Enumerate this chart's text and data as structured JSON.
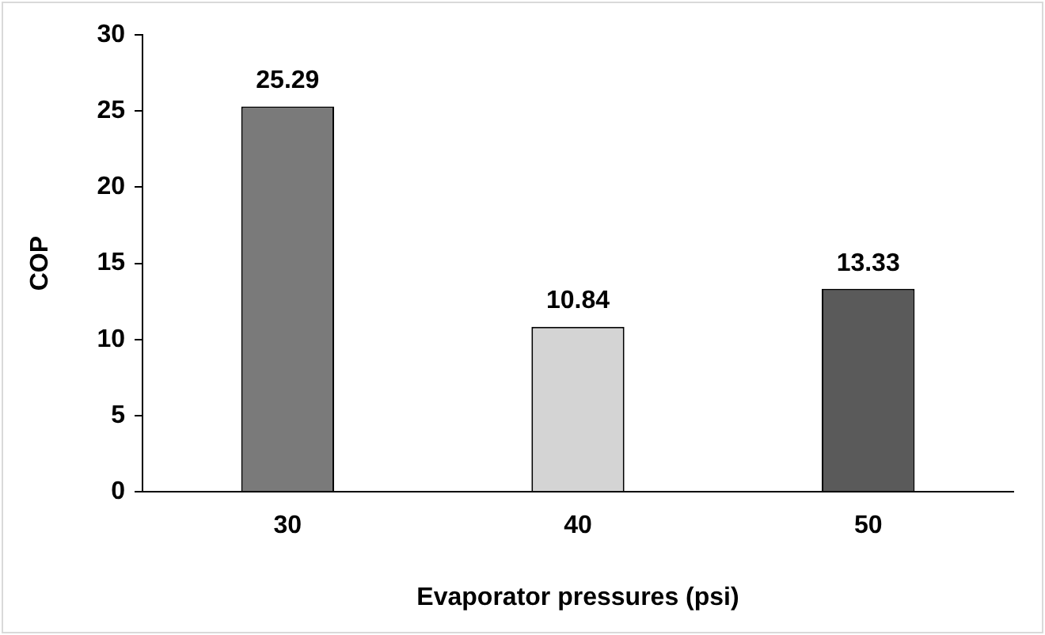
{
  "chart_data": {
    "type": "bar",
    "xlabel": "Evaporator pressures (psi)",
    "ylabel": "COP",
    "categories": [
      "30",
      "40",
      "50"
    ],
    "values": [
      25.29,
      10.84,
      13.33
    ],
    "colors": [
      "#7a7a7a",
      "#d4d4d4",
      "#5a5a5a"
    ],
    "ylim": [
      0,
      30
    ],
    "yticks": [
      0,
      5,
      10,
      15,
      20,
      25,
      30
    ],
    "grid": false,
    "legend": false,
    "data_labels": true
  }
}
